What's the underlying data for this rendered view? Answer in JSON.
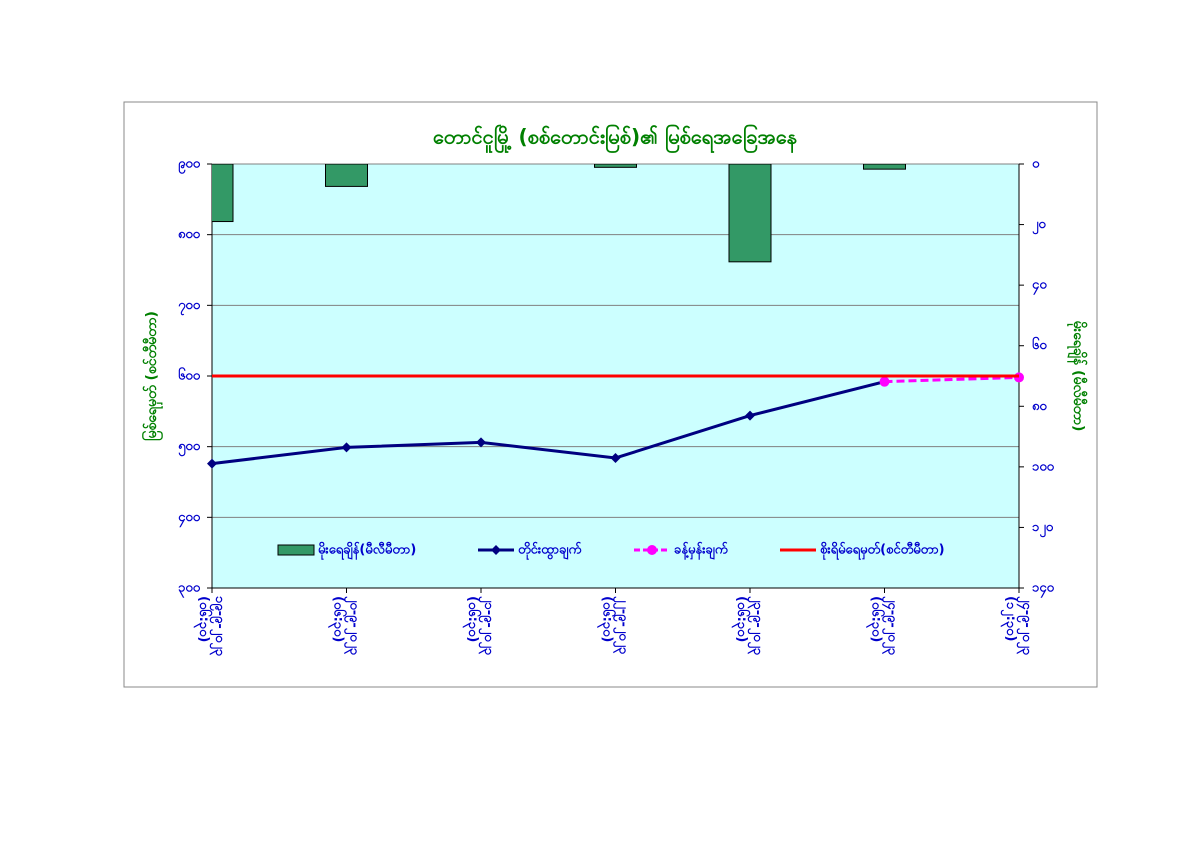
{
  "chart_data": {
    "type": "combo",
    "title": "တောင်ငူမြို့ (စစ်တောင်းမြစ်)၏ မြစ်ရေအခြေအနေ",
    "y_label": "မြစ်ရေမှတ် (စင်တီမီတာ)",
    "y2_label": "မိုးရေချိန် (မီလီမီတာ)",
    "categories": [
      [
        "၁၉-၉-၂၀၂၃",
        "(၀၆:၃၀)"
      ],
      [
        "၂၀-၉-၂၀၂၃",
        "(၀၆:၃၀)"
      ],
      [
        "၂၁-၉-၂၀၂၃",
        "(၀၆:၃၀)"
      ],
      [
        "၂၂-၉-၂၀၂၃",
        "(၀၆:၃၀)"
      ],
      [
        "၂၃-၉-၂၀၂၃",
        "(၀၆:၃၀)"
      ],
      [
        "၂၄-၉-၂၀၂၃",
        "(၀၆:၃၀)"
      ],
      [
        "၂၄-၉-၂၀၂၃",
        "(၁၂:၃၀)"
      ]
    ],
    "ylim": [
      300,
      900
    ],
    "yticks": [
      {
        "value": 900,
        "label": "၉၀၀"
      },
      {
        "value": 800,
        "label": "၈၀၀"
      },
      {
        "value": 700,
        "label": "၇၀၀"
      },
      {
        "value": 600,
        "label": "၆၀၀"
      },
      {
        "value": 500,
        "label": "၅၀၀"
      },
      {
        "value": 400,
        "label": "၄၀၀"
      },
      {
        "value": 300,
        "label": "၃၀၀"
      }
    ],
    "y2lim": [
      140,
      0
    ],
    "y2ticks": [
      {
        "value": 0,
        "label": "၀"
      },
      {
        "value": 20,
        "label": "၂၀"
      },
      {
        "value": 40,
        "label": "၄၀"
      },
      {
        "value": 60,
        "label": "၆၀"
      },
      {
        "value": 80,
        "label": "၈၀"
      },
      {
        "value": 100,
        "label": "၁၀၀"
      },
      {
        "value": 120,
        "label": "၁၂၀"
      },
      {
        "value": 140,
        "label": "၁၄၀"
      }
    ],
    "grid": true,
    "series": [
      {
        "name": "မိုးရေချိန်(မီလီမီတာ)",
        "type": "bar",
        "axis": "y2",
        "color": "#339966",
        "values": [
          19,
          7.4,
          0,
          1.1,
          32.3,
          1.7,
          null
        ]
      },
      {
        "name": "တိုင်းထွာချက်",
        "type": "line",
        "marker": "diamond",
        "color": "#000080",
        "values": [
          476,
          499,
          506,
          484,
          544,
          592,
          null
        ]
      },
      {
        "name": "ခန့်မှန်းချက်",
        "type": "line",
        "marker": "circle",
        "dashed": true,
        "color": "#ff00ff",
        "values": [
          null,
          null,
          null,
          null,
          null,
          592,
          598
        ]
      },
      {
        "name": "စိုးရိမ်ရေမှတ်(စင်တီမီတာ)",
        "type": "line",
        "color": "#ff0000",
        "values": [
          600,
          600,
          600,
          600,
          600,
          600,
          600
        ]
      }
    ]
  }
}
